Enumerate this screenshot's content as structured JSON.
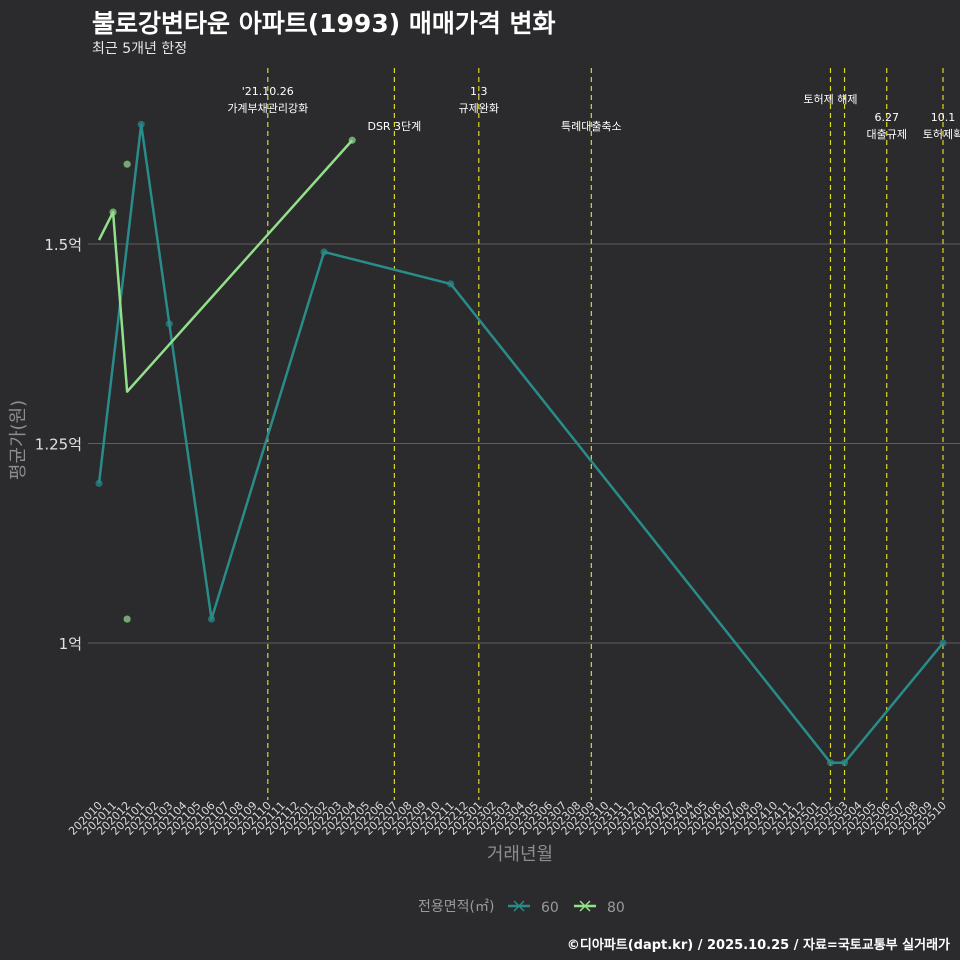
{
  "title": "불로강변타운 아파트(1993) 매매가격 변화",
  "subtitle": "최근 5개년 한정",
  "caption": "©디아파트(dapt.kr) / 2025.10.25 / 자료=국토교통부 실거래가",
  "colors": {
    "background": "#2b2a2c",
    "series60": "#2a8c8a",
    "series80": "#92e08a",
    "vline": "#d9d92a",
    "grid": "#5e5e5e"
  },
  "chart_data": {
    "type": "line",
    "title": "불로강변타운 아파트(1993) 매매가격 변화",
    "xlabel": "거래년월",
    "ylabel": "평균가(원)",
    "ylim": [
      0.82,
      1.75
    ],
    "y_unit": "억",
    "yticks": [
      1.0,
      1.25,
      1.5
    ],
    "ytick_labels": [
      "1억",
      "1.25억",
      "1.5억"
    ],
    "categories": [
      "202010",
      "202011",
      "202012",
      "202101",
      "202102",
      "202103",
      "202104",
      "202105",
      "202106",
      "202107",
      "202108",
      "202109",
      "202110",
      "202111",
      "202112",
      "202201",
      "202202",
      "202203",
      "202204",
      "202205",
      "202206",
      "202207",
      "202208",
      "202209",
      "202210",
      "202211",
      "202212",
      "202301",
      "202302",
      "202303",
      "202304",
      "202305",
      "202306",
      "202307",
      "202308",
      "202309",
      "202310",
      "202311",
      "202312",
      "202401",
      "202402",
      "202403",
      "202404",
      "202405",
      "202406",
      "202407",
      "202408",
      "202409",
      "202410",
      "202411",
      "202412",
      "202501",
      "202502",
      "202503",
      "202504",
      "202505",
      "202506",
      "202507",
      "202508",
      "202509",
      "202510"
    ],
    "legend_title": "전용면적(㎡)",
    "series": [
      {
        "name": "60",
        "line": [
          {
            "x": "202010",
            "y": 1.2
          },
          {
            "x": "202101",
            "y": 1.65
          },
          {
            "x": "202103",
            "y": 1.4
          },
          {
            "x": "202106",
            "y": 1.03
          },
          {
            "x": "202202",
            "y": 1.49
          },
          {
            "x": "202211",
            "y": 1.45
          },
          {
            "x": "202502",
            "y": 0.85
          },
          {
            "x": "202503",
            "y": 0.85
          },
          {
            "x": "202510",
            "y": 1.0
          }
        ],
        "points": [
          {
            "x": "202010",
            "y": 1.2
          },
          {
            "x": "202101",
            "y": 1.65
          },
          {
            "x": "202103",
            "y": 1.4
          },
          {
            "x": "202106",
            "y": 1.03
          },
          {
            "x": "202202",
            "y": 1.49
          },
          {
            "x": "202211",
            "y": 1.45
          },
          {
            "x": "202502",
            "y": 0.85
          },
          {
            "x": "202503",
            "y": 0.85
          },
          {
            "x": "202510",
            "y": 1.0
          }
        ]
      },
      {
        "name": "80",
        "line": [
          {
            "x": "202010",
            "y": 1.505
          },
          {
            "x": "202011",
            "y": 1.54
          },
          {
            "x": "202012",
            "y": 1.315
          },
          {
            "x": "202204",
            "y": 1.63
          }
        ],
        "points": [
          {
            "x": "202011",
            "y": 1.54
          },
          {
            "x": "202012",
            "y": 1.6
          },
          {
            "x": "202012",
            "y": 1.03
          },
          {
            "x": "202204",
            "y": 1.63
          }
        ]
      }
    ],
    "annotations": [
      {
        "x": "202110",
        "lines": [
          "'21.10.26",
          "가계부채관리강화"
        ],
        "row": 0
      },
      {
        "x": "202207",
        "lines": [
          "DSR 3단계"
        ],
        "row": 2
      },
      {
        "x": "202301",
        "lines": [
          "1.3",
          "규제완화"
        ],
        "row": 0
      },
      {
        "x": "202309",
        "lines": [
          "특례대출축소"
        ],
        "row": 2
      },
      {
        "x": "202502",
        "lines": [
          "토허제 해제"
        ],
        "row": 1
      },
      {
        "x": "202503",
        "lines": [],
        "row": 1
      },
      {
        "x": "202506",
        "lines": [
          "6.27",
          "대출규제"
        ],
        "row": 3
      },
      {
        "x": "202510",
        "lines": [
          "10.1",
          "토허제확"
        ],
        "row": 3
      }
    ]
  }
}
